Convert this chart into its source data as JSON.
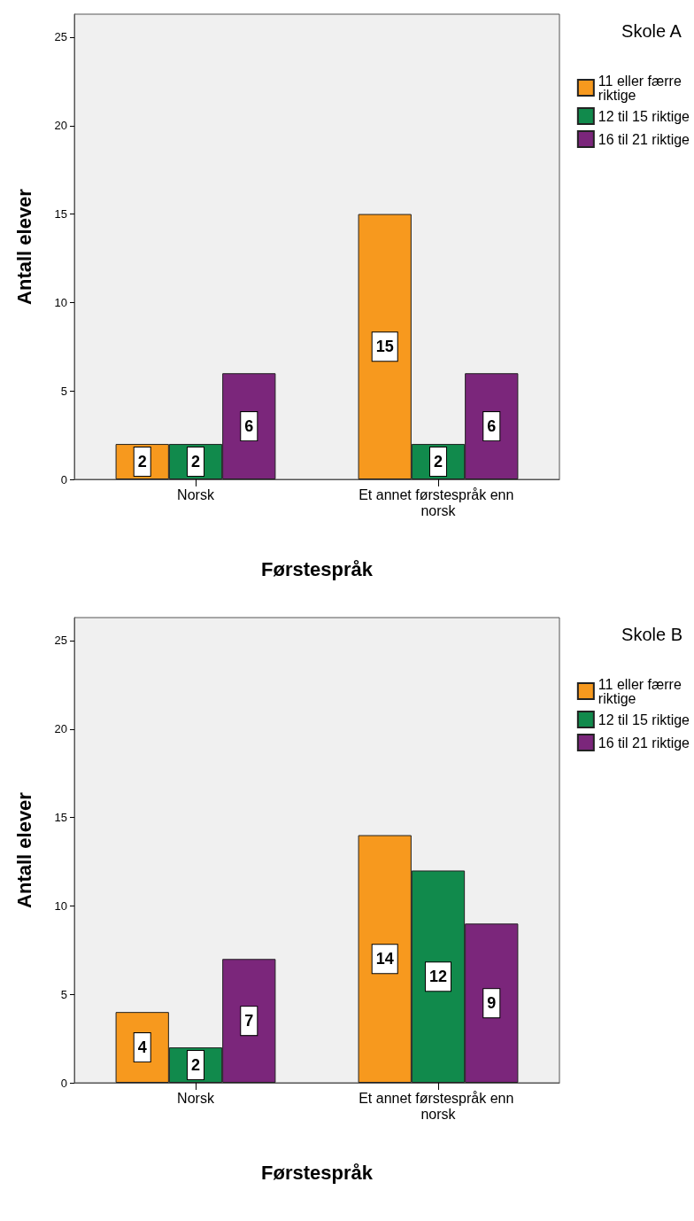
{
  "chart_data": [
    {
      "type": "bar",
      "legend_title": "Skole A",
      "xlabel": "Førstespråk",
      "ylabel": "Antall elever",
      "categories": [
        "Norsk",
        "Et annet førstespråk enn norsk"
      ],
      "series": [
        {
          "name": "11 eller færre riktige",
          "color": "#f7991e",
          "values": [
            2,
            15
          ]
        },
        {
          "name": "12 til 15 riktige",
          "color": "#118a4c",
          "values": [
            2,
            2
          ]
        },
        {
          "name": "16 til 21 riktige",
          "color": "#7b267b",
          "values": [
            6,
            6
          ]
        }
      ],
      "ylim": [
        0,
        26.3
      ],
      "yticks": [
        0,
        5,
        10,
        15,
        20,
        25
      ],
      "grid": false,
      "legend": "right",
      "data_labels": true
    },
    {
      "type": "bar",
      "legend_title": "Skole B",
      "xlabel": "Førstespråk",
      "ylabel": "Antall elever",
      "categories": [
        "Norsk",
        "Et annet førstespråk enn norsk"
      ],
      "series": [
        {
          "name": "11 eller færre riktige",
          "color": "#f7991e",
          "values": [
            4,
            14
          ]
        },
        {
          "name": "12 til 15 riktige",
          "color": "#118a4c",
          "values": [
            2,
            12
          ]
        },
        {
          "name": "16 til 21 riktige",
          "color": "#7b267b",
          "values": [
            7,
            9
          ]
        }
      ],
      "ylim": [
        0,
        26.3
      ],
      "yticks": [
        0,
        5,
        10,
        15,
        20,
        25
      ],
      "grid": false,
      "legend": "right",
      "data_labels": true
    }
  ]
}
